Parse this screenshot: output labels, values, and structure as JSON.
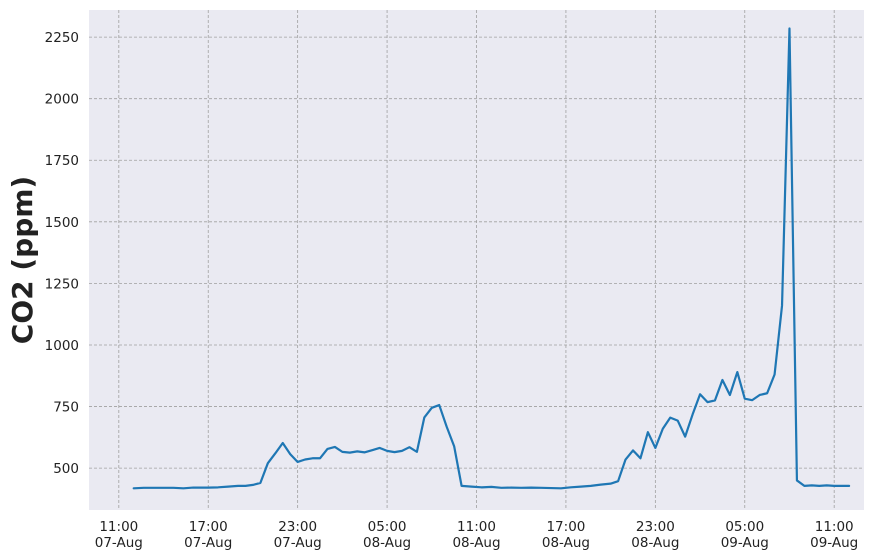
{
  "chart_data": {
    "type": "line",
    "title": "",
    "xlabel": "",
    "ylabel": "CO2 (ppm)",
    "grid": true,
    "grid_style": "dashed",
    "background": "#eaeaf2",
    "line_color": "#1f77b4",
    "xlim": [
      "2023-08-07 09:00",
      "2023-08-09 13:00"
    ],
    "ylim": [
      330,
      2360
    ],
    "x_ticks": [
      {
        "x": "2023-08-07 11:00",
        "line1": "11:00",
        "line2": "07-Aug"
      },
      {
        "x": "2023-08-07 17:00",
        "line1": "17:00",
        "line2": "07-Aug"
      },
      {
        "x": "2023-08-07 23:00",
        "line1": "23:00",
        "line2": "07-Aug"
      },
      {
        "x": "2023-08-08 05:00",
        "line1": "05:00",
        "line2": "08-Aug"
      },
      {
        "x": "2023-08-08 11:00",
        "line1": "11:00",
        "line2": "08-Aug"
      },
      {
        "x": "2023-08-08 17:00",
        "line1": "17:00",
        "line2": "08-Aug"
      },
      {
        "x": "2023-08-08 23:00",
        "line1": "23:00",
        "line2": "08-Aug"
      },
      {
        "x": "2023-08-09 05:00",
        "line1": "05:00",
        "line2": "09-Aug"
      },
      {
        "x": "2023-08-09 11:00",
        "line1": "11:00",
        "line2": "09-Aug"
      }
    ],
    "y_ticks": [
      500,
      750,
      1000,
      1250,
      1500,
      1750,
      2000,
      2250
    ],
    "series": [
      {
        "x": [
          "2023-08-07 12:00",
          "2023-08-07 12:40",
          "2023-08-07 13:20",
          "2023-08-07 14:00",
          "2023-08-07 14:40",
          "2023-08-07 15:20",
          "2023-08-07 16:00",
          "2023-08-07 16:30",
          "2023-08-07 17:00",
          "2023-08-07 17:40",
          "2023-08-07 18:20",
          "2023-08-07 19:00",
          "2023-08-07 19:30",
          "2023-08-07 20:00",
          "2023-08-07 20:30",
          "2023-08-07 21:00",
          "2023-08-07 21:30",
          "2023-08-07 22:00",
          "2023-08-07 22:30",
          "2023-08-07 23:00",
          "2023-08-07 23:30",
          "2023-08-08 00:00",
          "2023-08-08 00:30",
          "2023-08-08 01:00",
          "2023-08-08 01:30",
          "2023-08-08 02:00",
          "2023-08-08 02:30",
          "2023-08-08 03:00",
          "2023-08-08 03:30",
          "2023-08-08 04:00",
          "2023-08-08 04:30",
          "2023-08-08 05:00",
          "2023-08-08 05:30",
          "2023-08-08 06:00",
          "2023-08-08 06:30",
          "2023-08-08 07:00",
          "2023-08-08 07:30",
          "2023-08-08 08:00",
          "2023-08-08 08:30",
          "2023-08-08 09:00",
          "2023-08-08 09:30",
          "2023-08-08 10:00",
          "2023-08-08 10:40",
          "2023-08-08 11:20",
          "2023-08-08 12:00",
          "2023-08-08 12:40",
          "2023-08-08 13:20",
          "2023-08-08 14:00",
          "2023-08-08 14:40",
          "2023-08-08 15:20",
          "2023-08-08 16:00",
          "2023-08-08 16:40",
          "2023-08-08 17:20",
          "2023-08-08 18:00",
          "2023-08-08 18:40",
          "2023-08-08 19:20",
          "2023-08-08 20:00",
          "2023-08-08 20:30",
          "2023-08-08 21:00",
          "2023-08-08 21:30",
          "2023-08-08 22:00",
          "2023-08-08 22:30",
          "2023-08-08 23:00",
          "2023-08-08 23:30",
          "2023-08-09 00:00",
          "2023-08-09 00:30",
          "2023-08-09 01:00",
          "2023-08-09 01:30",
          "2023-08-09 02:00",
          "2023-08-09 02:30",
          "2023-08-09 03:00",
          "2023-08-09 03:30",
          "2023-08-09 04:00",
          "2023-08-09 04:30",
          "2023-08-09 05:00",
          "2023-08-09 05:30",
          "2023-08-09 06:00",
          "2023-08-09 06:30",
          "2023-08-09 07:00",
          "2023-08-09 07:30",
          "2023-08-09 08:00",
          "2023-08-09 08:30",
          "2023-08-09 09:00",
          "2023-08-09 09:30",
          "2023-08-09 10:00",
          "2023-08-09 10:30",
          "2023-08-09 11:00",
          "2023-08-09 11:30",
          "2023-08-09 12:00"
        ],
        "y": [
          418,
          420,
          420,
          420,
          420,
          418,
          421,
          421,
          421,
          422,
          425,
          428,
          428,
          432,
          440,
          520,
          560,
          602,
          557,
          525,
          535,
          540,
          540,
          578,
          586,
          566,
          563,
          568,
          564,
          573,
          582,
          570,
          565,
          570,
          585,
          566,
          706,
          745,
          756,
          668,
          589,
          428,
          425,
          422,
          424,
          420,
          421,
          420,
          421,
          420,
          419,
          418,
          422,
          425,
          428,
          433,
          437,
          447,
          535,
          572,
          540,
          646,
          582,
          660,
          705,
          693,
          628,
          718,
          800,
          768,
          775,
          858,
          797,
          890,
          782,
          776,
          797,
          804,
          880,
          1160,
          2285,
          450,
          428,
          430,
          428,
          430,
          428,
          428,
          428
        ]
      }
    ]
  }
}
